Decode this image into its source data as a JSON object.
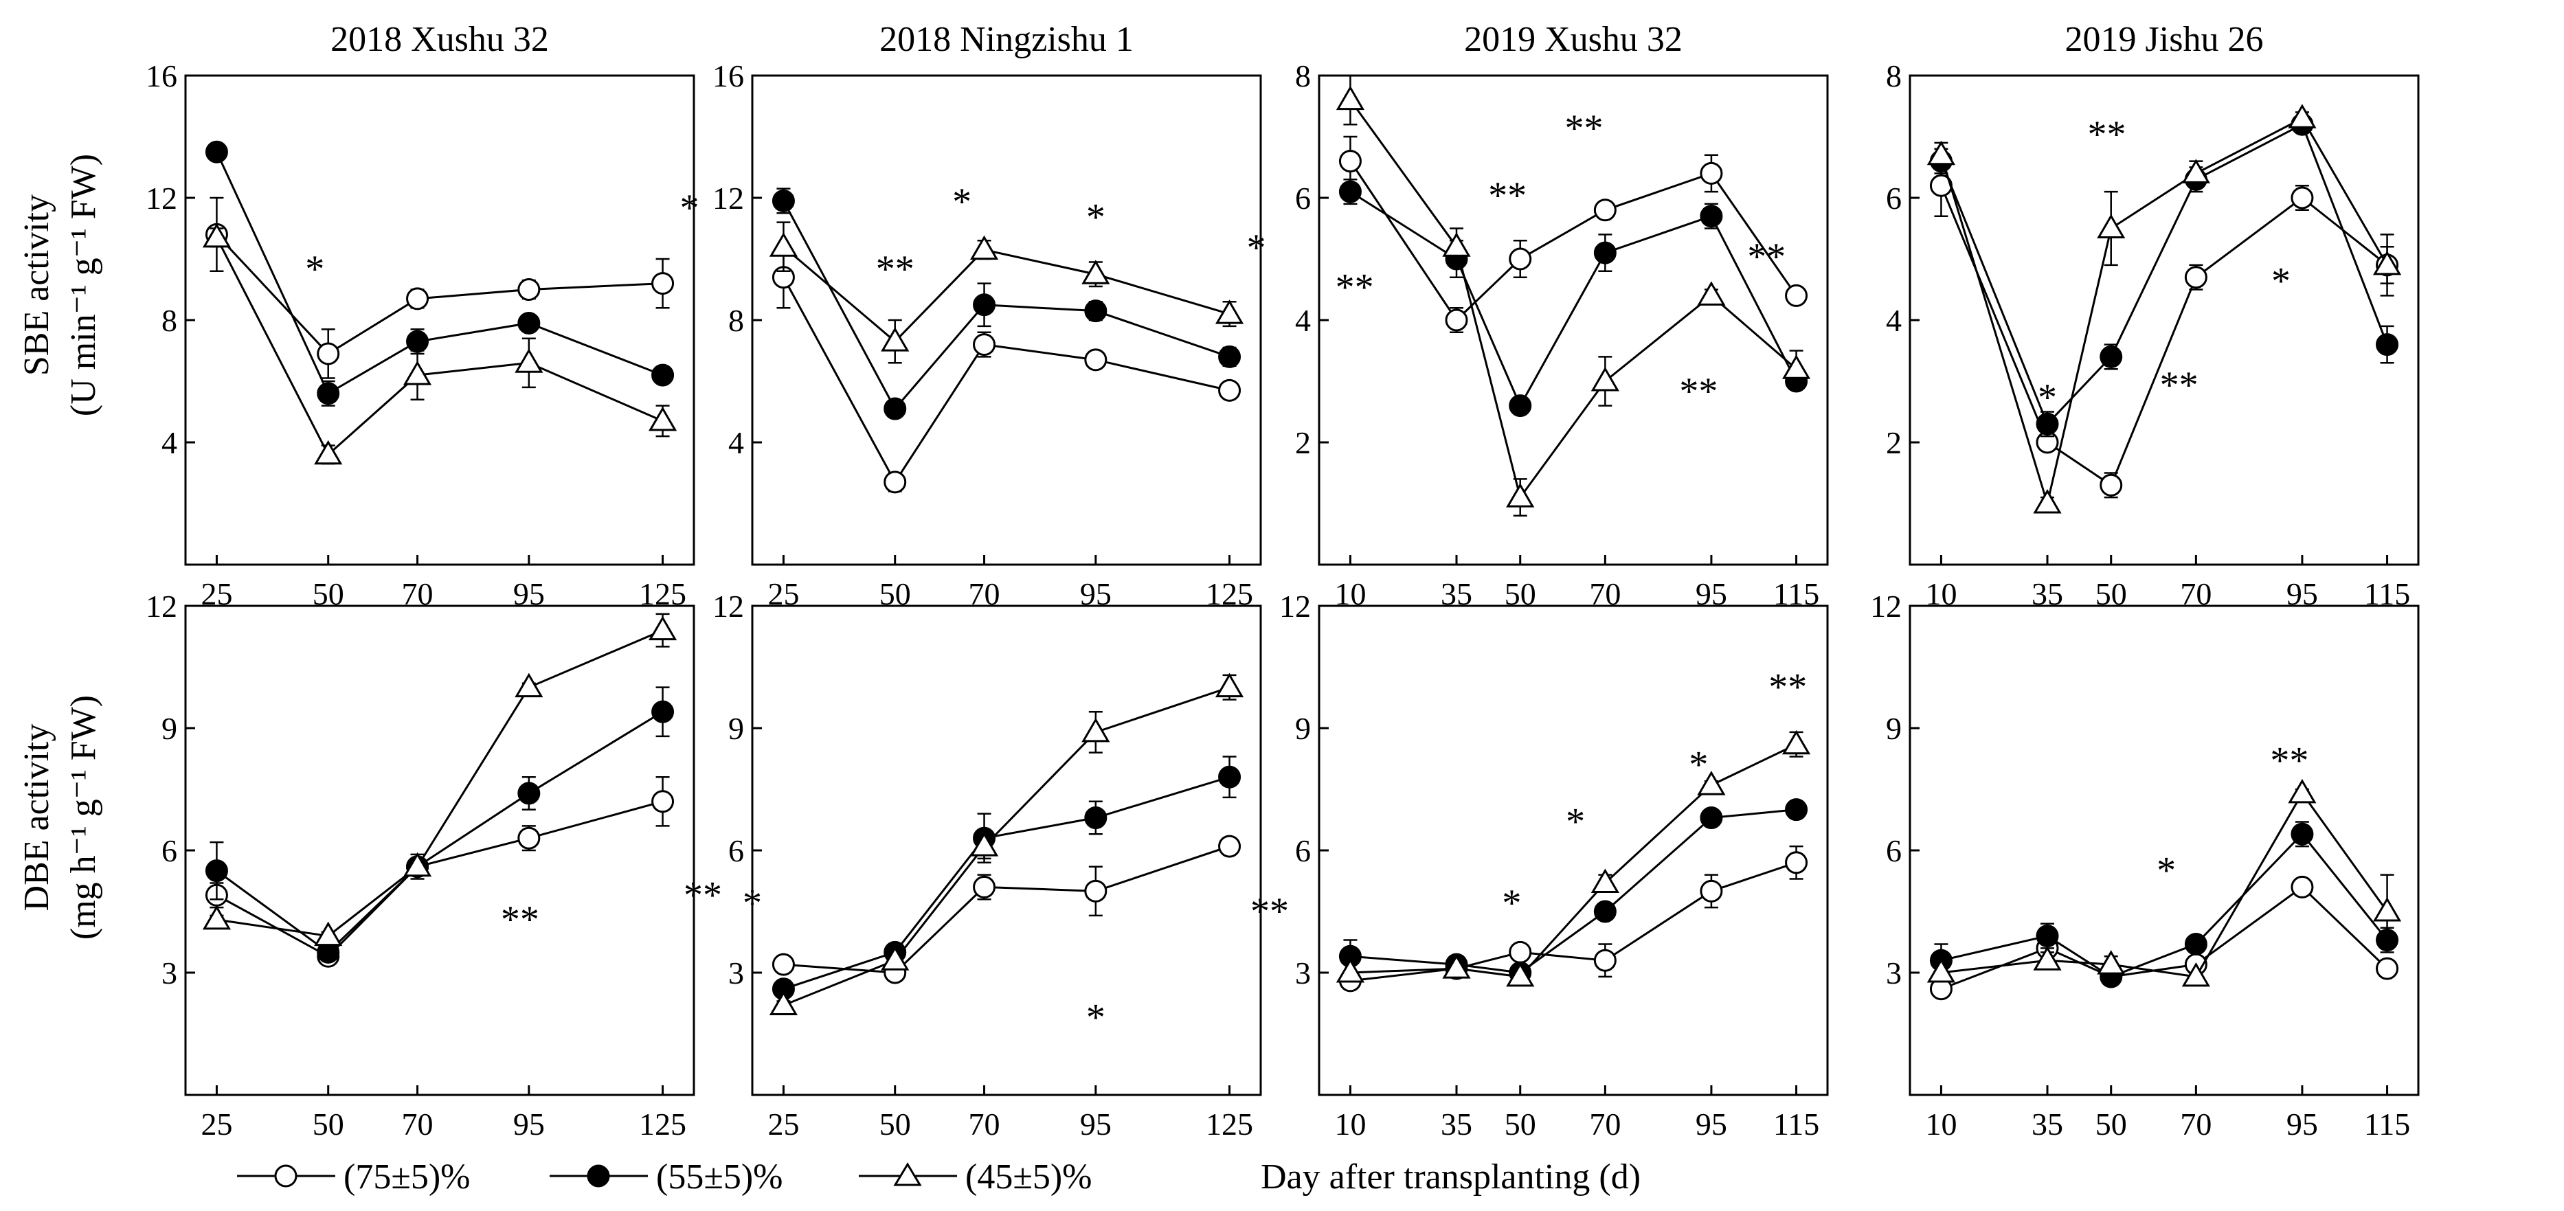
{
  "figure": {
    "xlabel": "Day after transplanting (d)",
    "row_ylabels": [
      [
        "SBE activity",
        "(U min⁻¹ g⁻¹ FW)"
      ],
      [
        "DBE activity",
        "(mg h⁻¹ g⁻¹ FW)"
      ]
    ],
    "legend": [
      "(75±5)%",
      "(55±5)%",
      "(45±5)%"
    ],
    "colors": {
      "line": "#000000",
      "filled": "#000000",
      "open": "#ffffff"
    }
  },
  "chart_data": [
    {
      "type": "line",
      "row": 0,
      "col": 0,
      "title": "2018 Xushu 32",
      "x": [
        25,
        50,
        70,
        95,
        125
      ],
      "xticks": [
        "25",
        "50",
        "70",
        "95",
        "125"
      ],
      "ylim": [
        0,
        16
      ],
      "yticks": [
        4,
        8,
        12,
        16
      ],
      "series": [
        {
          "name": "(75±5)%",
          "marker": "open-circle",
          "values": [
            10.8,
            6.9,
            8.7,
            9.0,
            9.2
          ],
          "errors": [
            1.2,
            0.8,
            0.3,
            0.3,
            0.8
          ]
        },
        {
          "name": "(55±5)%",
          "marker": "filled-circle",
          "values": [
            13.5,
            5.6,
            7.3,
            7.9,
            6.2
          ],
          "errors": [
            0.2,
            0.4,
            0.4,
            0.2,
            0.2
          ]
        },
        {
          "name": "(45±5)%",
          "marker": "open-triangle",
          "values": [
            10.7,
            3.6,
            6.2,
            6.6,
            4.7
          ],
          "errors": [
            0.3,
            0.3,
            0.8,
            0.8,
            0.5
          ]
        }
      ],
      "annotations": [
        {
          "text": "*",
          "x": 47,
          "y": 9.8
        },
        {
          "text": "*",
          "x": 131,
          "y": 11.8
        }
      ]
    },
    {
      "type": "line",
      "row": 0,
      "col": 1,
      "title": "2018 Ningzishu 1",
      "x": [
        25,
        50,
        70,
        95,
        125
      ],
      "xticks": [
        "25",
        "50",
        "70",
        "95",
        "125"
      ],
      "ylim": [
        0,
        16
      ],
      "yticks": [
        4,
        8,
        12,
        16
      ],
      "series": [
        {
          "name": "(75±5)%",
          "marker": "open-circle",
          "values": [
            9.4,
            2.7,
            7.2,
            6.7,
            5.7
          ],
          "errors": [
            1.0,
            0.3,
            0.4,
            0.2,
            0.1
          ]
        },
        {
          "name": "(55±5)%",
          "marker": "filled-circle",
          "values": [
            11.9,
            5.1,
            8.5,
            8.3,
            6.8
          ],
          "errors": [
            0.4,
            0.2,
            0.7,
            0.3,
            0.3
          ]
        },
        {
          "name": "(45±5)%",
          "marker": "open-triangle",
          "values": [
            10.4,
            7.3,
            10.3,
            9.5,
            8.2
          ],
          "errors": [
            0.8,
            0.7,
            0.3,
            0.4,
            0.4
          ]
        }
      ],
      "annotations": [
        {
          "text": "**",
          "x": 50,
          "y": 9.8
        },
        {
          "text": "*",
          "x": 65,
          "y": 12.0
        },
        {
          "text": "*",
          "x": 95,
          "y": 11.5
        },
        {
          "text": "*",
          "x": 131,
          "y": 10.5
        }
      ]
    },
    {
      "type": "line",
      "row": 0,
      "col": 2,
      "title": "2019 Xushu 32",
      "x": [
        10,
        35,
        50,
        70,
        95,
        115
      ],
      "xticks": [
        "10",
        "35",
        "50",
        "70",
        "95",
        "115"
      ],
      "ylim": [
        0,
        8
      ],
      "yticks": [
        2,
        4,
        6,
        8
      ],
      "series": [
        {
          "name": "(75±5)%",
          "marker": "open-circle",
          "values": [
            6.6,
            4.0,
            5.0,
            5.8,
            6.4,
            4.4
          ],
          "errors": [
            0.4,
            0.2,
            0.3,
            0.1,
            0.3,
            0.1
          ]
        },
        {
          "name": "(55±5)%",
          "marker": "filled-circle",
          "values": [
            6.1,
            5.0,
            2.6,
            5.1,
            5.7,
            3.0
          ],
          "errors": [
            0.2,
            0.3,
            0.1,
            0.3,
            0.2,
            0.1
          ]
        },
        {
          "name": "(45±5)%",
          "marker": "open-triangle",
          "values": [
            7.6,
            5.2,
            1.1,
            3.0,
            4.4,
            3.2
          ],
          "errors": [
            0.4,
            0.3,
            0.3,
            0.4,
            0.1,
            0.3
          ]
        }
      ],
      "annotations": [
        {
          "text": "**",
          "x": 11,
          "y": 4.6
        },
        {
          "text": "**",
          "x": 47,
          "y": 6.1
        },
        {
          "text": "**",
          "x": 65,
          "y": 7.2
        },
        {
          "text": "**",
          "x": 108,
          "y": 5.1
        },
        {
          "text": "**",
          "x": 92,
          "y": 2.9
        }
      ]
    },
    {
      "type": "line",
      "row": 0,
      "col": 3,
      "title": "2019 Jishu 26",
      "x": [
        10,
        35,
        50,
        70,
        95,
        115
      ],
      "xticks": [
        "10",
        "35",
        "50",
        "70",
        "95",
        "115"
      ],
      "ylim": [
        0,
        8
      ],
      "yticks": [
        2,
        4,
        6,
        8
      ],
      "series": [
        {
          "name": "(75±5)%",
          "marker": "open-circle",
          "values": [
            6.2,
            2.0,
            1.3,
            4.7,
            6.0,
            4.9
          ],
          "errors": [
            0.5,
            0.1,
            0.2,
            0.2,
            0.2,
            0.3
          ]
        },
        {
          "name": "(55±5)%",
          "marker": "filled-circle",
          "values": [
            6.6,
            2.3,
            3.4,
            6.3,
            7.2,
            3.6
          ],
          "errors": [
            0.2,
            0.2,
            0.2,
            0.2,
            0.1,
            0.3
          ]
        },
        {
          "name": "(45±5)%",
          "marker": "open-triangle",
          "values": [
            6.7,
            1.0,
            5.5,
            6.4,
            7.3,
            4.9
          ],
          "errors": [
            0.2,
            0.1,
            0.6,
            0.2,
            0.1,
            0.5
          ]
        }
      ],
      "annotations": [
        {
          "text": "**",
          "x": 49,
          "y": 7.1
        },
        {
          "text": "*",
          "x": 35,
          "y": 2.8
        },
        {
          "text": "**",
          "x": 66,
          "y": 3.0
        },
        {
          "text": "*",
          "x": 90,
          "y": 4.7
        }
      ]
    },
    {
      "type": "line",
      "row": 1,
      "col": 0,
      "x": [
        25,
        50,
        70,
        95,
        125
      ],
      "xticks": [
        "25",
        "50",
        "70",
        "95",
        "125"
      ],
      "ylim": [
        0,
        12
      ],
      "yticks": [
        3,
        6,
        9,
        12
      ],
      "series": [
        {
          "name": "(75±5)%",
          "marker": "open-circle",
          "values": [
            4.9,
            3.4,
            5.6,
            6.3,
            7.2
          ],
          "errors": [
            0.3,
            0.1,
            0.2,
            0.3,
            0.6
          ]
        },
        {
          "name": "(55±5)%",
          "marker": "filled-circle",
          "values": [
            5.5,
            3.5,
            5.6,
            7.4,
            9.4
          ],
          "errors": [
            0.7,
            0.1,
            0.3,
            0.4,
            0.6
          ]
        },
        {
          "name": "(45±5)%",
          "marker": "open-triangle",
          "values": [
            4.3,
            3.9,
            5.6,
            10.0,
            11.4
          ],
          "errors": [
            0.1,
            0.1,
            0.2,
            0.1,
            0.4
          ]
        }
      ],
      "annotations": [
        {
          "text": "**",
          "x": 93,
          "y": 4.4
        },
        {
          "text": "**",
          "x": 134,
          "y": 5.0
        }
      ]
    },
    {
      "type": "line",
      "row": 1,
      "col": 1,
      "x": [
        25,
        50,
        70,
        95,
        125
      ],
      "xticks": [
        "25",
        "50",
        "70",
        "95",
        "125"
      ],
      "ylim": [
        0,
        12
      ],
      "yticks": [
        3,
        6,
        9,
        12
      ],
      "series": [
        {
          "name": "(75±5)%",
          "marker": "open-circle",
          "values": [
            3.2,
            3.0,
            5.1,
            5.0,
            6.1
          ],
          "errors": [
            0.1,
            0.2,
            0.3,
            0.6,
            0.2
          ]
        },
        {
          "name": "(55±5)%",
          "marker": "filled-circle",
          "values": [
            2.6,
            3.5,
            6.3,
            6.8,
            7.8
          ],
          "errors": [
            0.1,
            0.2,
            0.6,
            0.4,
            0.5
          ]
        },
        {
          "name": "(45±5)%",
          "marker": "open-triangle",
          "values": [
            2.2,
            3.3,
            6.1,
            8.9,
            10.0
          ],
          "errors": [
            0.1,
            0.2,
            0.3,
            0.5,
            0.3
          ]
        }
      ],
      "annotations": [
        {
          "text": "*",
          "x": 18,
          "y": 4.8
        },
        {
          "text": "*",
          "x": 95,
          "y": 2.0
        },
        {
          "text": "**",
          "x": 134,
          "y": 4.6
        }
      ]
    },
    {
      "type": "line",
      "row": 1,
      "col": 2,
      "x": [
        10,
        35,
        50,
        70,
        95,
        115
      ],
      "xticks": [
        "10",
        "35",
        "50",
        "70",
        "95",
        "115"
      ],
      "ylim": [
        0,
        12
      ],
      "yticks": [
        3,
        6,
        9,
        12
      ],
      "series": [
        {
          "name": "(75±5)%",
          "marker": "open-circle",
          "values": [
            2.8,
            3.1,
            3.5,
            3.3,
            5.0,
            5.7
          ],
          "errors": [
            0.2,
            0.1,
            0.1,
            0.4,
            0.4,
            0.4
          ]
        },
        {
          "name": "(55±5)%",
          "marker": "filled-circle",
          "values": [
            3.4,
            3.2,
            3.0,
            4.5,
            6.8,
            7.0
          ],
          "errors": [
            0.4,
            0.1,
            0.2,
            0.1,
            0.1,
            0.2
          ]
        },
        {
          "name": "(45±5)%",
          "marker": "open-triangle",
          "values": [
            3.0,
            3.1,
            2.9,
            5.2,
            7.6,
            8.6
          ],
          "errors": [
            0.2,
            0.1,
            0.1,
            0.2,
            0.1,
            0.3
          ]
        }
      ],
      "annotations": [
        {
          "text": "*",
          "x": 48,
          "y": 4.8
        },
        {
          "text": "*",
          "x": 63,
          "y": 6.8
        },
        {
          "text": "*",
          "x": 92,
          "y": 8.2
        },
        {
          "text": "**",
          "x": 113,
          "y": 10.1
        }
      ]
    },
    {
      "type": "line",
      "row": 1,
      "col": 3,
      "x": [
        10,
        35,
        50,
        70,
        95,
        115
      ],
      "xticks": [
        "10",
        "35",
        "50",
        "70",
        "95",
        "115"
      ],
      "ylim": [
        0,
        12
      ],
      "yticks": [
        3,
        6,
        9,
        12
      ],
      "series": [
        {
          "name": "(75±5)%",
          "marker": "open-circle",
          "values": [
            2.6,
            3.6,
            2.9,
            3.2,
            5.1,
            3.1
          ],
          "errors": [
            0.2,
            0.2,
            0.1,
            0.1,
            0.2,
            0.1
          ]
        },
        {
          "name": "(55±5)%",
          "marker": "filled-circle",
          "values": [
            3.3,
            3.9,
            2.9,
            3.7,
            6.4,
            3.8
          ],
          "errors": [
            0.4,
            0.3,
            0.2,
            0.1,
            0.3,
            0.3
          ]
        },
        {
          "name": "(45±5)%",
          "marker": "open-triangle",
          "values": [
            3.0,
            3.3,
            3.2,
            2.9,
            7.4,
            4.5
          ],
          "errors": [
            0.2,
            0.2,
            0.2,
            0.1,
            0.1,
            0.9
          ]
        }
      ],
      "annotations": [
        {
          "text": "*",
          "x": 63,
          "y": 5.6
        },
        {
          "text": "**",
          "x": 92,
          "y": 8.3
        }
      ]
    }
  ]
}
